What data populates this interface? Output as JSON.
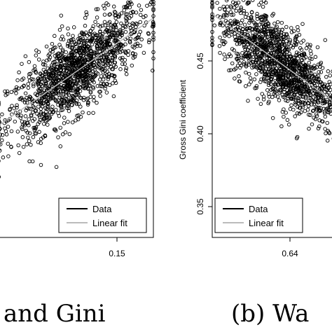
{
  "chart_data": [
    {
      "type": "scatter",
      "panel": "left",
      "caption": "and Gini",
      "xlabel": "",
      "ylabel": "",
      "x_ticks": [
        "0.15"
      ],
      "xlim": [
        0.04,
        0.158
      ],
      "ylim": [
        0.33,
        0.49
      ],
      "trend": "positive",
      "series": [
        {
          "name": "Data",
          "style": "open-circles",
          "color": "#000000"
        },
        {
          "name": "Linear fit",
          "style": "line",
          "color": "#bbbbbb",
          "fit": {
            "x": [
              0.04,
              0.158
            ],
            "y": [
              0.405,
              0.477
            ]
          }
        }
      ],
      "legend": {
        "position": "bottom-right",
        "entries": [
          "Data",
          "Linear fit"
        ]
      }
    },
    {
      "type": "scatter",
      "panel": "right",
      "caption": "(b) Wa",
      "xlabel": "",
      "ylabel": "Gross Gini coefficient",
      "x_ticks": [
        "0.64"
      ],
      "y_ticks": [
        "0.35",
        "0.40",
        "0.45"
      ],
      "xlim": [
        0.6,
        0.69
      ],
      "ylim": [
        0.331,
        0.479
      ],
      "trend": "negative",
      "series": [
        {
          "name": "Data",
          "style": "open-circles",
          "color": "#000000"
        },
        {
          "name": "Linear fit",
          "style": "line",
          "color": "#bbbbbb",
          "fit": {
            "x": [
              0.6,
              0.69
            ],
            "y": [
              0.4695,
              0.41
            ]
          }
        }
      ],
      "legend": {
        "position": "bottom-right",
        "entries": [
          "Data",
          "Linear fit"
        ]
      }
    }
  ]
}
